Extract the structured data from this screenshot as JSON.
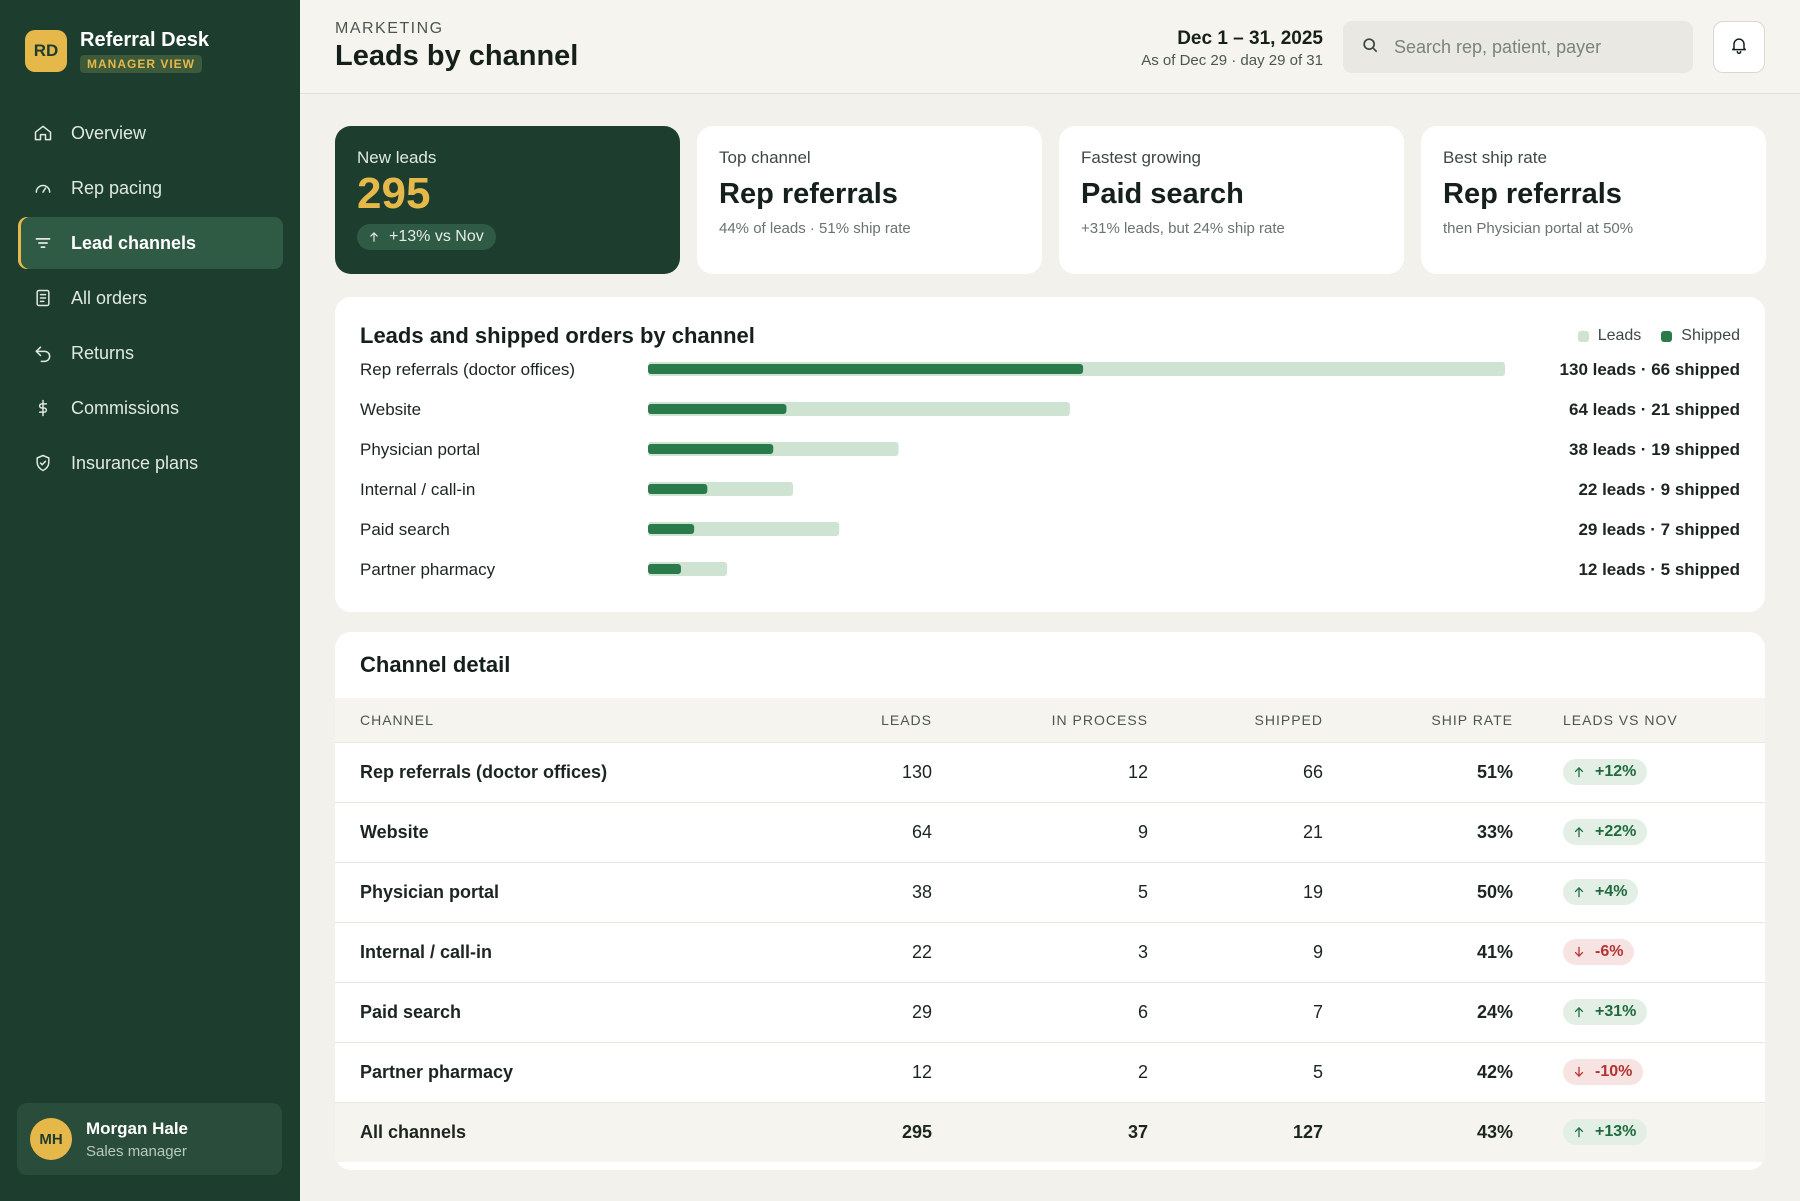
{
  "app": {
    "logo_initials": "RD",
    "name": "Referral Desk",
    "badge": "MANAGER VIEW"
  },
  "nav": [
    {
      "label": "Overview",
      "icon": "home-icon",
      "active": false
    },
    {
      "label": "Rep pacing",
      "icon": "gauge-icon",
      "active": false
    },
    {
      "label": "Lead channels",
      "icon": "filter-icon",
      "active": true
    },
    {
      "label": "All orders",
      "icon": "document-icon",
      "active": false
    },
    {
      "label": "Returns",
      "icon": "return-arrow-icon",
      "active": false
    },
    {
      "label": "Commissions",
      "icon": "dollar-icon",
      "active": false
    },
    {
      "label": "Insurance plans",
      "icon": "shield-icon",
      "active": false
    }
  ],
  "user": {
    "initials": "MH",
    "name": "Morgan Hale",
    "role": "Sales manager"
  },
  "header": {
    "eyebrow": "MARKETING",
    "title": "Leads by channel",
    "date_range": "Dec 1 – 31, 2025",
    "date_sub": "As of Dec 29 · day 29 of 31",
    "search_placeholder": "Search rep, patient, payer"
  },
  "kpis": {
    "new_leads": {
      "label": "New leads",
      "value": "295",
      "delta": "+13% vs Nov"
    },
    "top_channel": {
      "label": "Top channel",
      "value": "Rep referrals",
      "sub": "44% of leads · 51% ship rate"
    },
    "fastest_growing": {
      "label": "Fastest growing",
      "value": "Paid search",
      "sub": "+31% leads, but 24% ship rate"
    },
    "best_ship_rate": {
      "label": "Best ship rate",
      "value": "Rep referrals",
      "sub": "then Physician portal at 50%"
    }
  },
  "chart_data": {
    "type": "bar",
    "title": "Leads and shipped orders by channel",
    "orientation": "horizontal",
    "categories": [
      "Rep referrals (doctor offices)",
      "Website",
      "Physician portal",
      "Internal / call-in",
      "Paid search",
      "Partner pharmacy"
    ],
    "series": [
      {
        "name": "Leads",
        "values": [
          130,
          64,
          38,
          22,
          29,
          12
        ],
        "color": "#cfe3d2"
      },
      {
        "name": "Shipped",
        "values": [
          66,
          21,
          19,
          9,
          7,
          5
        ],
        "color": "#2a7a4b"
      }
    ],
    "value_labels": [
      "130 leads · 66 shipped",
      "64 leads · 21 shipped",
      "38 leads · 19 shipped",
      "22 leads · 9 shipped",
      "29 leads · 7 shipped",
      "12 leads · 5 shipped"
    ],
    "legend_position": "top-right",
    "grid": false
  },
  "table": {
    "title": "Channel detail",
    "columns": [
      "CHANNEL",
      "LEADS",
      "IN PROCESS",
      "SHIPPED",
      "SHIP RATE",
      "LEADS VS NOV"
    ],
    "rows": [
      {
        "channel": "Rep referrals (doctor offices)",
        "leads": "130",
        "in_process": "12",
        "shipped": "66",
        "ship_rate": "51%",
        "delta": "+12%",
        "dir": "up"
      },
      {
        "channel": "Website",
        "leads": "64",
        "in_process": "9",
        "shipped": "21",
        "ship_rate": "33%",
        "delta": "+22%",
        "dir": "up"
      },
      {
        "channel": "Physician portal",
        "leads": "38",
        "in_process": "5",
        "shipped": "19",
        "ship_rate": "50%",
        "delta": "+4%",
        "dir": "up"
      },
      {
        "channel": "Internal / call-in",
        "leads": "22",
        "in_process": "3",
        "shipped": "9",
        "ship_rate": "41%",
        "delta": "-6%",
        "dir": "down"
      },
      {
        "channel": "Paid search",
        "leads": "29",
        "in_process": "6",
        "shipped": "7",
        "ship_rate": "24%",
        "delta": "+31%",
        "dir": "up"
      },
      {
        "channel": "Partner pharmacy",
        "leads": "12",
        "in_process": "2",
        "shipped": "5",
        "ship_rate": "42%",
        "delta": "-10%",
        "dir": "down"
      }
    ],
    "total": {
      "channel": "All channels",
      "leads": "295",
      "in_process": "37",
      "shipped": "127",
      "ship_rate": "43%",
      "delta": "+13%",
      "dir": "up"
    }
  },
  "colors": {
    "sidebar": "#1d3d2e",
    "accent": "#e6b84a",
    "up": "#1f6b3e",
    "down": "#b33232"
  }
}
